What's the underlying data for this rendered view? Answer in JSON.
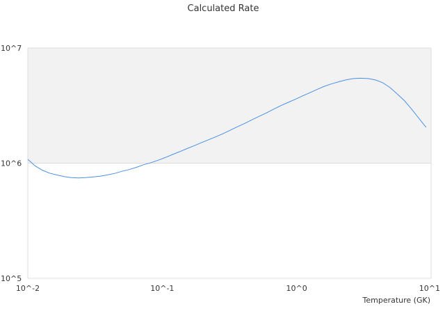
{
  "chart_data": {
    "type": "line",
    "title": "Calculated Rate",
    "xlabel": "Temperature (GK)",
    "ylabel": "",
    "xscale": "log",
    "yscale": "log",
    "xlim": [
      0.01,
      10
    ],
    "ylim": [
      100000,
      10000000
    ],
    "x_ticks": [
      {
        "value": 0.01,
        "label": "10^-2"
      },
      {
        "value": 0.1,
        "label": "10^-1"
      },
      {
        "value": 1,
        "label": "10^0"
      },
      {
        "value": 10,
        "label": "10^1"
      }
    ],
    "y_ticks": [
      {
        "value": 100000,
        "label": "10^5"
      },
      {
        "value": 1000000,
        "label": "10^6"
      },
      {
        "value": 10000000,
        "label": "10^7"
      }
    ],
    "grid": true,
    "band_color": "#f2f2f2",
    "series_color": "#4a90e2",
    "series": [
      {
        "x": [
          0.01,
          0.0113,
          0.0128,
          0.0145,
          0.0164,
          0.0186,
          0.021,
          0.0238,
          0.0269,
          0.0305,
          0.0345,
          0.0391,
          0.0443,
          0.0501,
          0.0567,
          0.0642,
          0.0727,
          0.0823,
          0.0931,
          0.1054,
          0.1194,
          0.1351,
          0.153,
          0.1732,
          0.1961,
          0.2219,
          0.2512,
          0.2844,
          0.322,
          0.3645,
          0.4126,
          0.4671,
          0.5289,
          0.5987,
          0.6778,
          0.7674,
          0.8687,
          0.9834,
          1.1134,
          1.2604,
          1.4269,
          1.6154,
          1.8288,
          2.0704,
          2.3439,
          2.6535,
          3.004,
          3.4008,
          3.8501,
          4.3587,
          4.9344,
          5.5862,
          6.3241,
          7.1595,
          8.1052,
          9.1759
        ],
        "y": [
          1080000,
          950000,
          870000,
          820000,
          790000,
          765000,
          750000,
          745000,
          750000,
          760000,
          770000,
          790000,
          815000,
          850000,
          880000,
          920000,
          970000,
          1010000,
          1060000,
          1120000,
          1190000,
          1260000,
          1340000,
          1420000,
          1510000,
          1600000,
          1700000,
          1810000,
          1940000,
          2080000,
          2220000,
          2390000,
          2560000,
          2740000,
          2950000,
          3170000,
          3380000,
          3600000,
          3850000,
          4100000,
          4380000,
          4660000,
          4900000,
          5100000,
          5300000,
          5430000,
          5470000,
          5430000,
          5280000,
          5000000,
          4550000,
          4000000,
          3500000,
          2950000,
          2450000,
          2050000
        ]
      }
    ]
  }
}
